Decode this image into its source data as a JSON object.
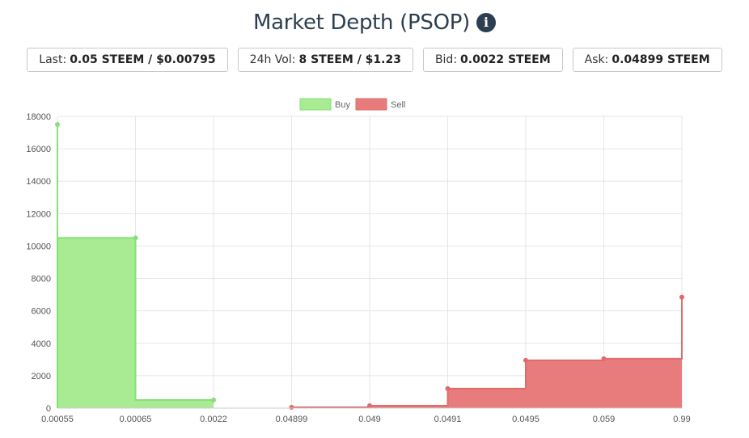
{
  "header": {
    "title": "Market Depth (PSOP)",
    "info_icon": "info-circle-icon"
  },
  "stats": [
    {
      "label": "Last:",
      "value": "0.05 STEEM / $0.00795"
    },
    {
      "label": "24h Vol:",
      "value": "8 STEEM / $1.23"
    },
    {
      "label": "Bid:",
      "value": "0.0022 STEEM"
    },
    {
      "label": "Ask:",
      "value": "0.04899 STEEM"
    }
  ],
  "chart_data": {
    "type": "area",
    "categories": [
      "0.00055",
      "0.00065",
      "0.0022",
      "0.04899",
      "0.049",
      "0.0491",
      "0.0495",
      "0.059",
      "0.99"
    ],
    "ylim": [
      0,
      18000
    ],
    "yticks": [
      0,
      2000,
      4000,
      6000,
      8000,
      10000,
      12000,
      14000,
      16000,
      18000
    ],
    "grid": true,
    "legend_position": "top-center",
    "series": [
      {
        "name": "Buy",
        "color": "#86e07a",
        "fill": "#a8eb92",
        "points": [
          {
            "x": "0.00055",
            "y": 17500
          },
          {
            "x": "0.00065",
            "y": 10500
          },
          {
            "x": "0.0022",
            "y": 500
          }
        ]
      },
      {
        "name": "Sell",
        "color": "#e06b6b",
        "fill": "#e87c7c",
        "points": [
          {
            "x": "0.04899",
            "y": 50
          },
          {
            "x": "0.049",
            "y": 150
          },
          {
            "x": "0.0491",
            "y": 1200
          },
          {
            "x": "0.0495",
            "y": 2950
          },
          {
            "x": "0.059",
            "y": 3050
          },
          {
            "x": "0.99",
            "y": 6850
          }
        ]
      }
    ]
  }
}
